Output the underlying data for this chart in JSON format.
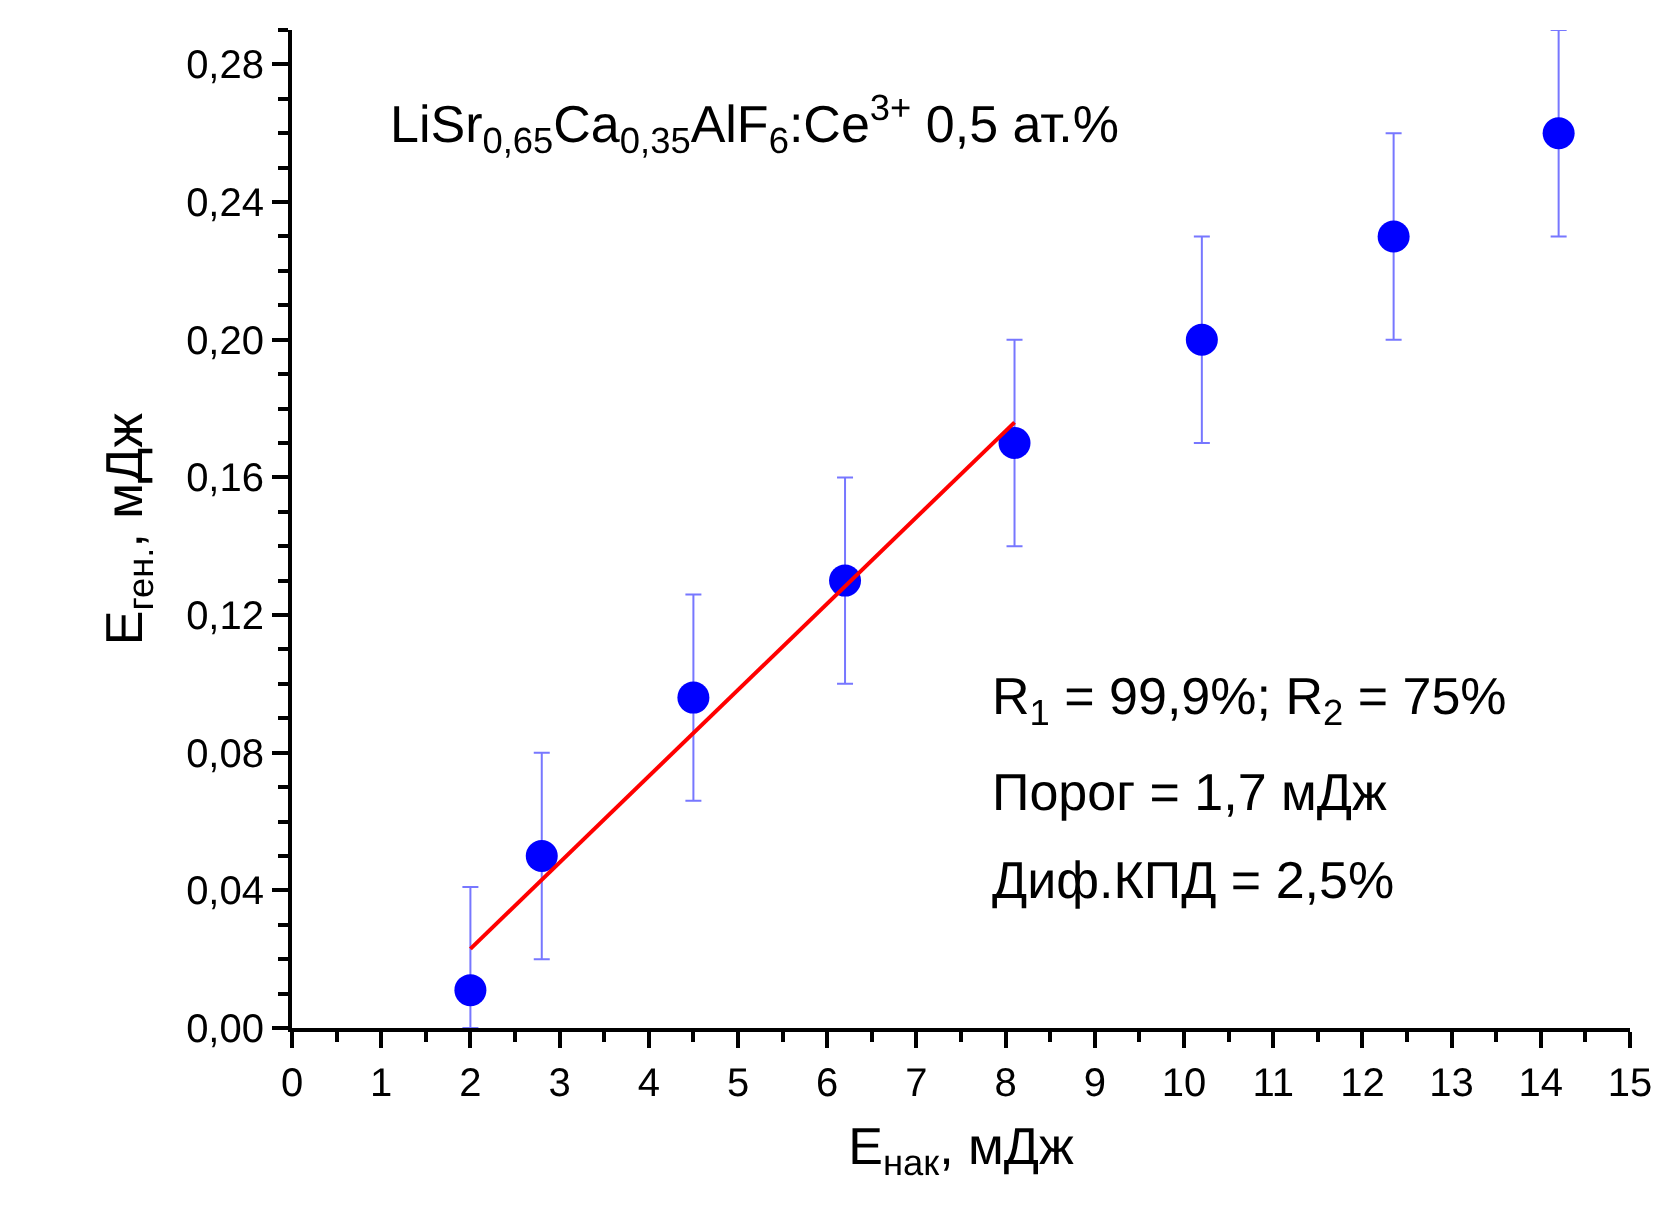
{
  "chart_data": {
    "type": "scatter",
    "xlabel": "E$_{нак}$, мДж",
    "ylabel": "E$_{ген.}$, мДж",
    "annotations": [
      "LiSr$_{0,65}$Ca$_{0,35}$AlF$_{6}$:Ce$^{3+}$ 0,5 ат.%",
      "R$_{1}$ = 99,9%; R$_{2}$ = 75%",
      "Порог = 1,7 мДж",
      "Диф.КПД = 2,5%"
    ],
    "series": [
      {
        "color": "#0000ff",
        "x": [
          2.0,
          2.8,
          4.5,
          6.2,
          8.1,
          10.2,
          12.35,
          14.2
        ],
        "values": [
          0.011,
          0.05,
          0.096,
          0.13,
          0.17,
          0.2,
          0.23,
          0.26
        ],
        "errors": [
          [
            0,
            0.041
          ],
          0.03,
          0.03,
          0.03,
          0.03,
          0.03,
          0.03,
          0.03
        ],
        "marker": "circle"
      },
      {
        "type": "line",
        "color": "#ff0000",
        "x": [
          2.0,
          8.1
        ],
        "values": [
          0.023,
          0.176
        ],
        "line_style": "solid"
      }
    ],
    "xlim": [
      0,
      15
    ],
    "xticks": [
      0,
      1,
      2,
      3,
      4,
      5,
      6,
      7,
      8,
      9,
      10,
      11,
      12,
      13,
      14,
      15
    ],
    "ylim": [
      0,
      0.29
    ],
    "yticks": [
      {
        "value": 0,
        "label": "0,00"
      },
      {
        "value": 0.04,
        "label": "0,04"
      },
      {
        "value": 0.08,
        "label": "0,08"
      },
      {
        "value": 0.12,
        "label": "0,12"
      },
      {
        "value": 0.16,
        "label": "0,16"
      },
      {
        "value": 0.2,
        "label": "0,20"
      },
      {
        "value": 0.24,
        "label": "0,24"
      },
      {
        "value": 0.28,
        "label": "0,28"
      }
    ],
    "grid": false,
    "legend": false
  }
}
